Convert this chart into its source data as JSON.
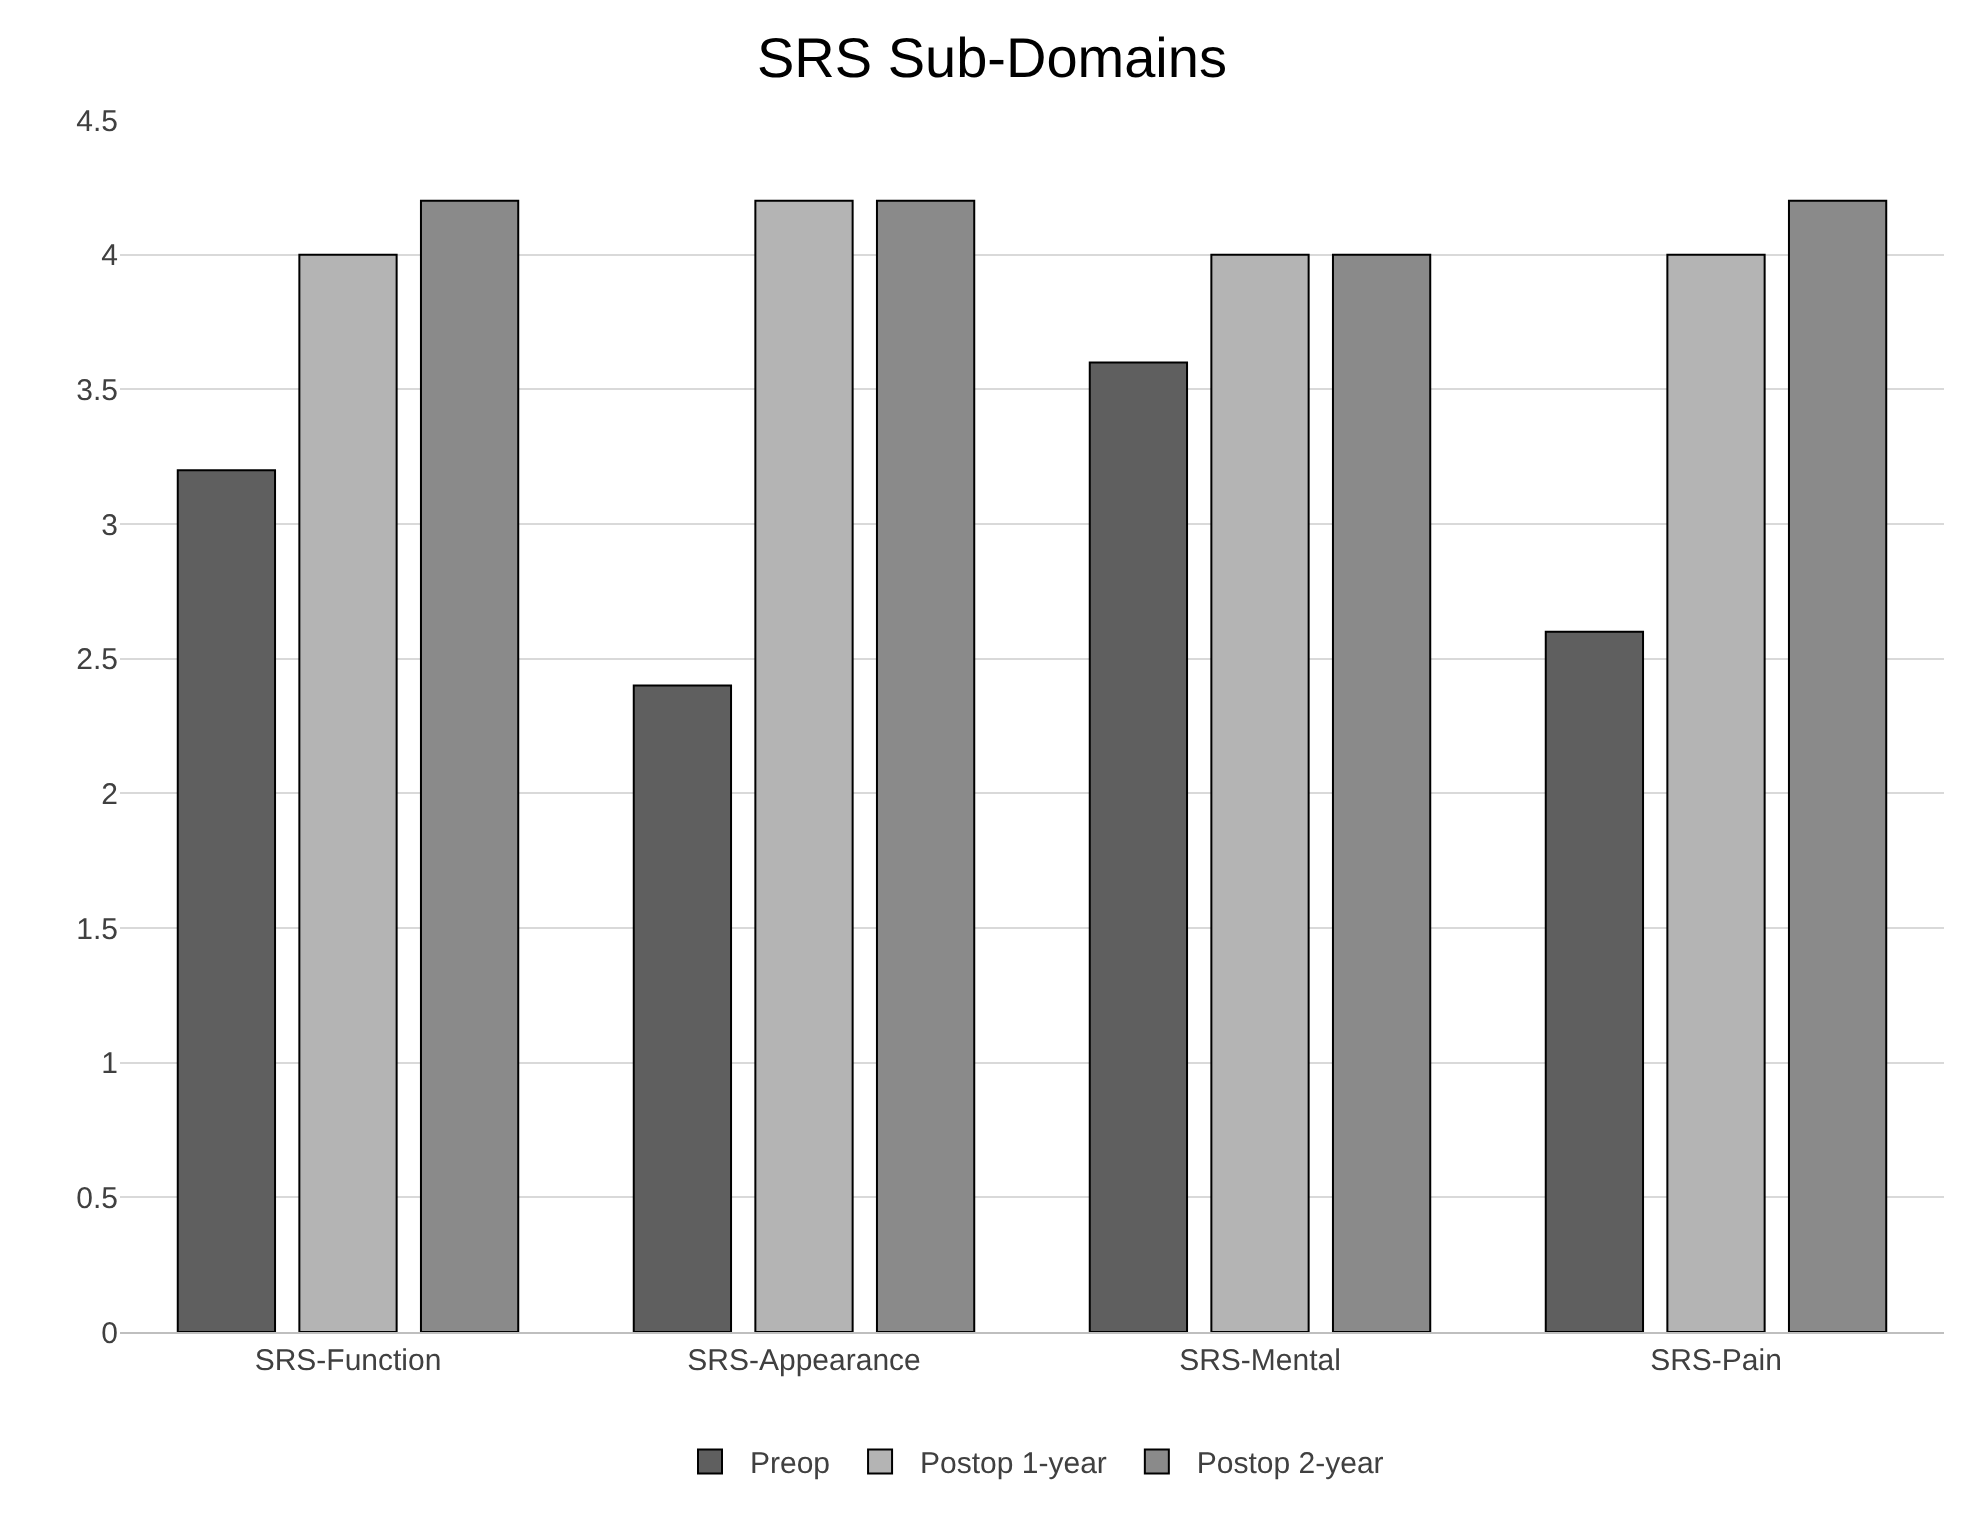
{
  "chart_data": {
    "type": "bar",
    "title": "SRS Sub-Domains",
    "categories": [
      "SRS-Function",
      "SRS-Appearance",
      "SRS-Mental",
      "SRS-Pain"
    ],
    "series": [
      {
        "name": "Preop",
        "color": "#5f5f5f",
        "values": [
          3.2,
          2.4,
          3.6,
          2.6
        ]
      },
      {
        "name": "Postop 1-year",
        "color": "#b4b4b4",
        "values": [
          4.0,
          4.2,
          4.0,
          4.0
        ]
      },
      {
        "name": "Postop 2-year",
        "color": "#8a8a8a",
        "values": [
          4.2,
          4.2,
          4.0,
          4.2
        ]
      }
    ],
    "ylim": [
      0,
      4.5
    ],
    "yticks": [
      0,
      0.5,
      1,
      1.5,
      2,
      2.5,
      3,
      3.5,
      4,
      4.5
    ],
    "grid": "y",
    "legend": "bottom"
  }
}
